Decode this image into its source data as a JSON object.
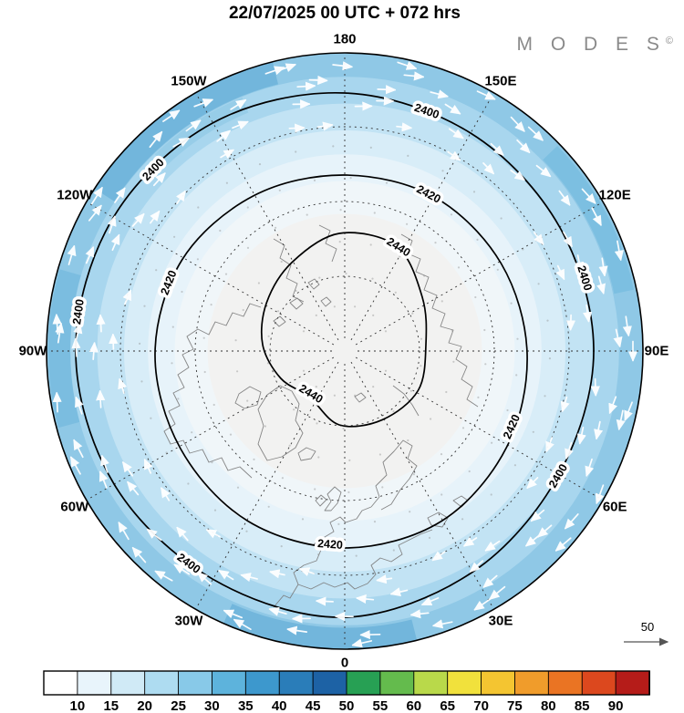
{
  "header": {
    "title": "22/07/2025  00 UTC  + 072 hrs",
    "logo_text": "M O D E S",
    "logo_mark": "©"
  },
  "map": {
    "longitude_labels": [
      {
        "text": "180",
        "lon": 180
      },
      {
        "text": "150E",
        "lon": 150
      },
      {
        "text": "120E",
        "lon": 120
      },
      {
        "text": "90E",
        "lon": 90
      },
      {
        "text": "60E",
        "lon": 60
      },
      {
        "text": "30E",
        "lon": 30
      },
      {
        "text": "0",
        "lon": 0
      },
      {
        "text": "30W",
        "lon": -30
      },
      {
        "text": "60W",
        "lon": -60
      },
      {
        "text": "90W",
        "lon": -90
      },
      {
        "text": "120W",
        "lon": -120
      },
      {
        "text": "150W",
        "lon": -150
      }
    ],
    "contours": [
      {
        "level": 2400,
        "label": "2400"
      },
      {
        "level": 2420,
        "label": "2420"
      },
      {
        "level": 2440,
        "label": "2440"
      }
    ],
    "wind_reference_label": "50"
  },
  "chart_data": {
    "type": "heatmap",
    "title": "22/07/2025 00 UTC + 072 hrs",
    "base_date": "22/07/2025",
    "base_time": "00 UTC",
    "lead_hours": 72,
    "projection": "north polar stereographic",
    "description": "Geopotential height contours with wind speed shading and wind vector arrows",
    "contour_levels": [
      2400,
      2420,
      2440
    ],
    "contour_interval": 20,
    "pole_center_value": 2440,
    "outer_value": 2400,
    "longitude_labels": [
      "180",
      "150W",
      "150E",
      "120W",
      "120E",
      "90W",
      "90E",
      "60W",
      "60E",
      "30W",
      "30E",
      "0"
    ],
    "colorbar_ticks": [
      10,
      15,
      20,
      25,
      30,
      35,
      40,
      45,
      50,
      55,
      60,
      65,
      70,
      75,
      80,
      85,
      90
    ],
    "colorbar_colors": [
      "#ffffff",
      "#e8f4fb",
      "#d0eaf6",
      "#aedcf1",
      "#88c9e8",
      "#5db3dc",
      "#3d98cd",
      "#2a7db9",
      "#1d62a5",
      "#27a054",
      "#64bb4d",
      "#b9d94a",
      "#f1e13c",
      "#f4c531",
      "#f09c2b",
      "#ea7423",
      "#dc481e",
      "#b51c19"
    ],
    "wind_reference_value": 50,
    "shading_profile": [
      {
        "frac": 1.0,
        "speed": 27,
        "color": "#8fc8e6"
      },
      {
        "frac": 0.92,
        "speed": 22,
        "color": "#a8d6ee"
      },
      {
        "frac": 0.83,
        "speed": 18,
        "color": "#c2e3f4"
      },
      {
        "frac": 0.74,
        "speed": 15,
        "color": "#d8edf8"
      },
      {
        "frac": 0.66,
        "speed": 12,
        "color": "#e7f3fa"
      },
      {
        "frac": 0.57,
        "speed": 10,
        "color": "#f0f6f9"
      },
      {
        "frac": 0.46,
        "speed": 7,
        "color": "#f2f2f1"
      }
    ],
    "style_colors": {
      "contour": "#000000",
      "coastline": "#7a7a7a",
      "wind_arrows": "#ffffff",
      "logo_gray": "#8a8a8a"
    }
  }
}
